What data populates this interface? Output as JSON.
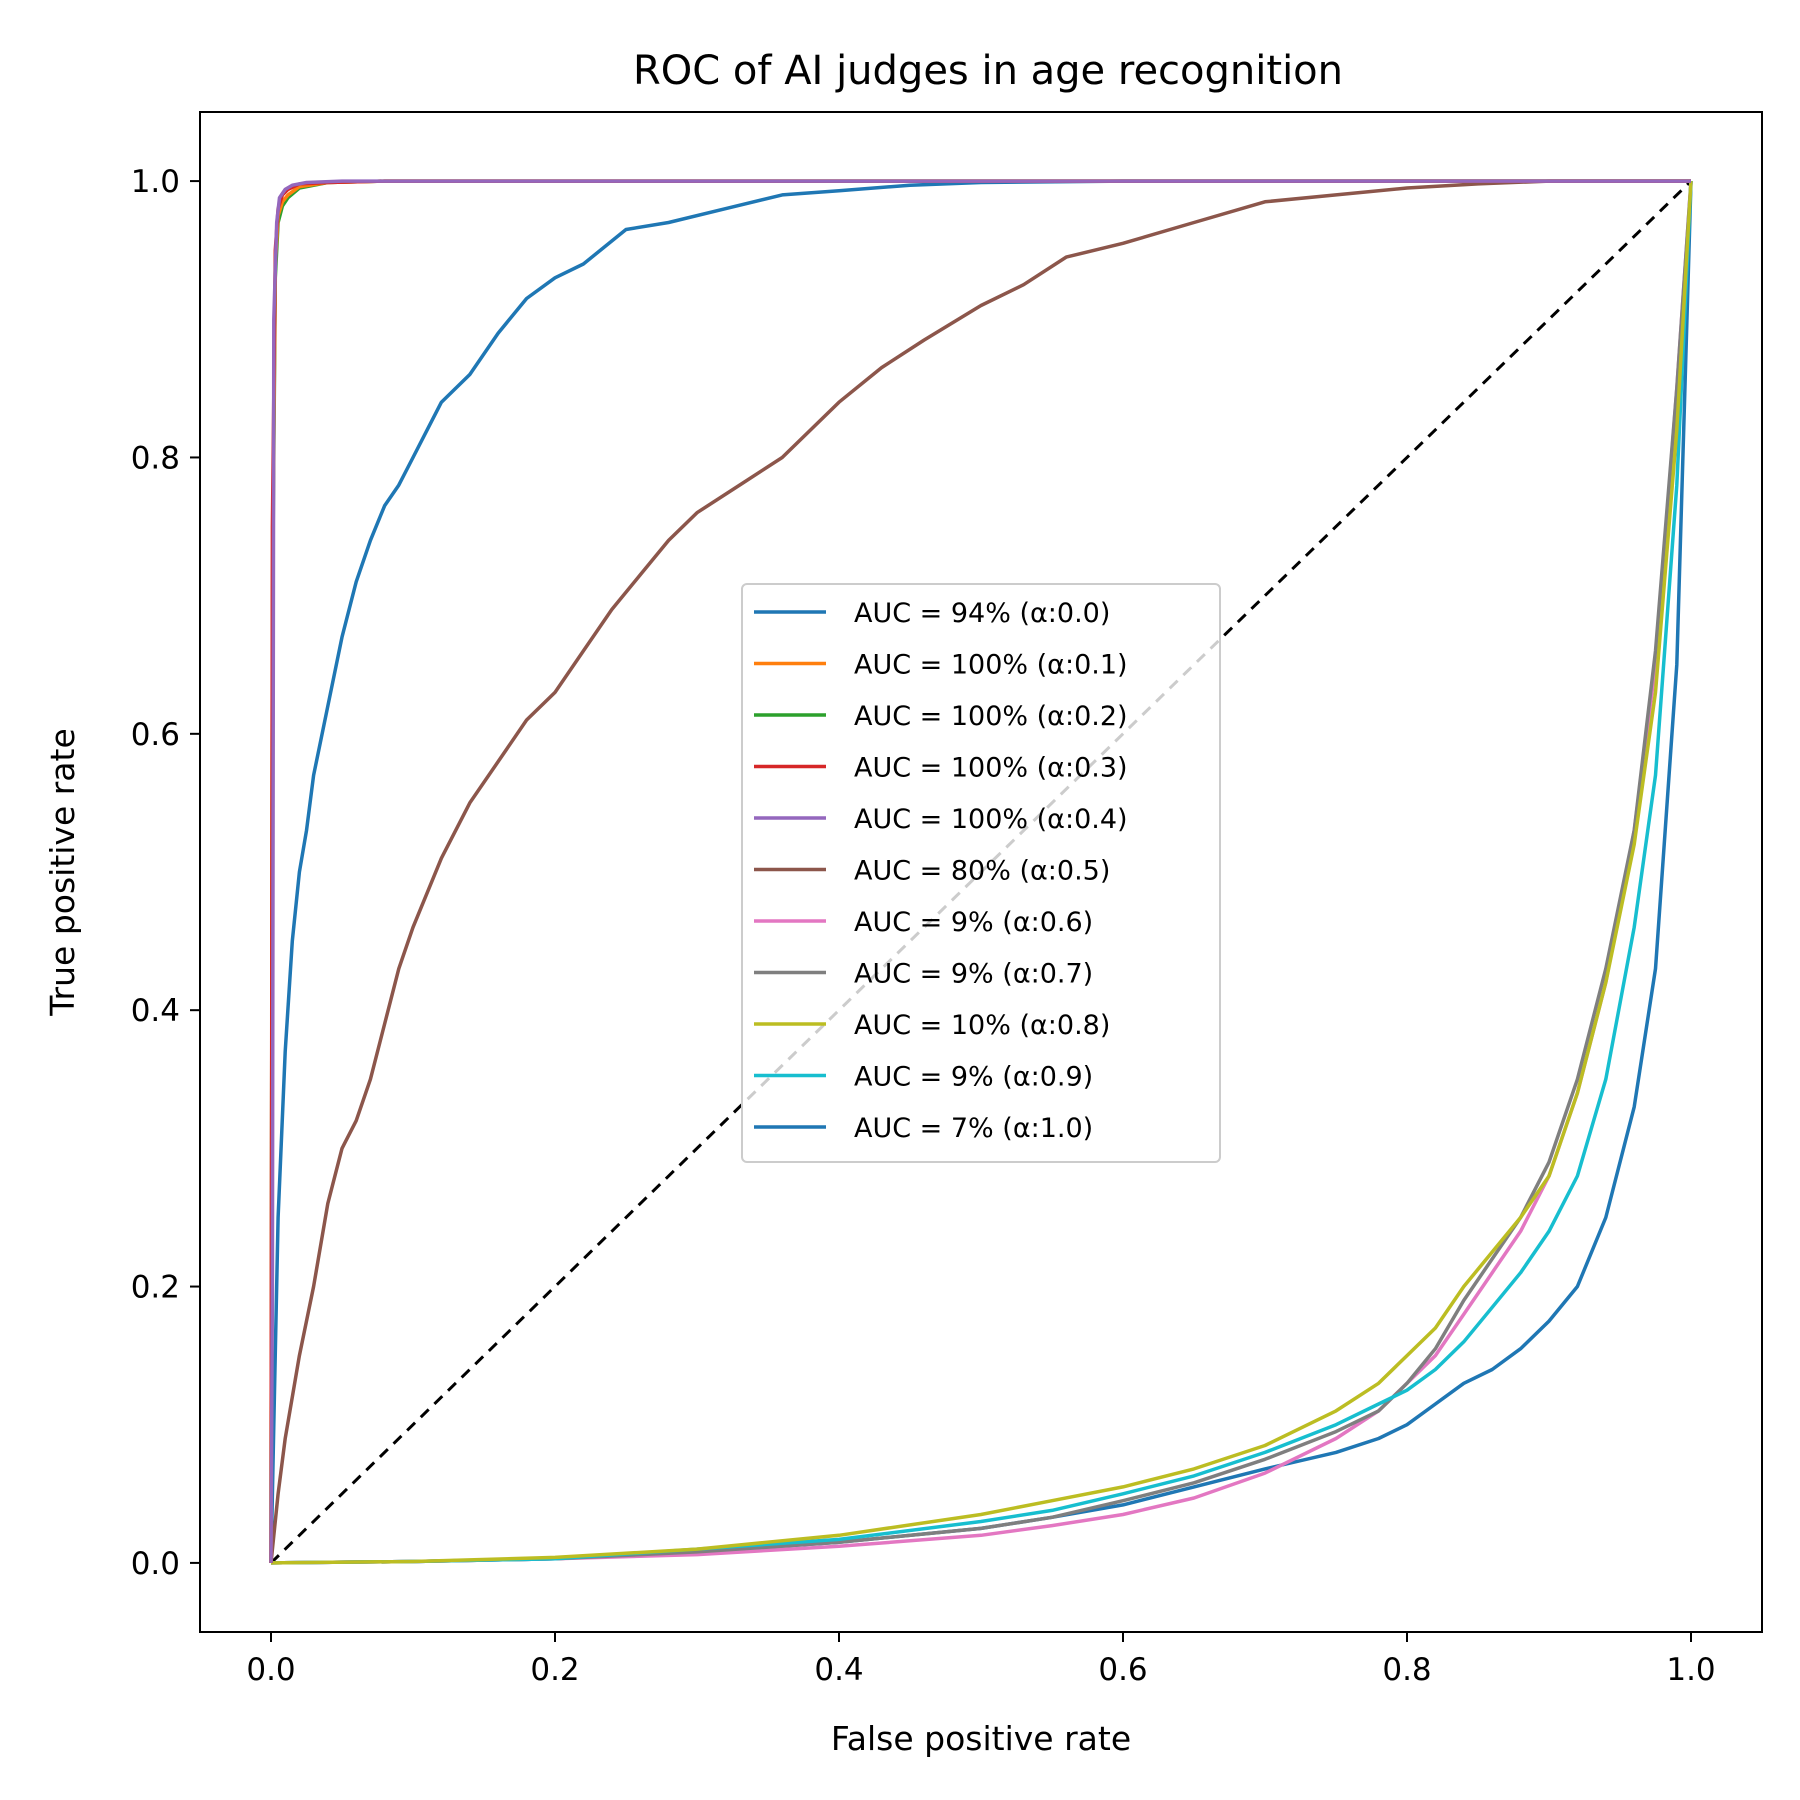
{
  "chart_data": {
    "type": "line",
    "title": "ROC of AI judges in age recognition",
    "xlabel": "False positive rate",
    "ylabel": "True positive rate",
    "xlim": [
      -0.05,
      1.05
    ],
    "ylim": [
      -0.05,
      1.05
    ],
    "xticks": [
      0.0,
      0.2,
      0.4,
      0.6,
      0.8,
      1.0
    ],
    "yticks": [
      0.0,
      0.2,
      0.4,
      0.6,
      0.8,
      1.0
    ],
    "xtick_labels": [
      "0.0",
      "0.2",
      "0.4",
      "0.6",
      "0.8",
      "1.0"
    ],
    "ytick_labels": [
      "0.0",
      "0.2",
      "0.4",
      "0.6",
      "0.8",
      "1.0"
    ],
    "legend_position": "center",
    "grid": false,
    "diagonal": {
      "x": [
        0,
        1
      ],
      "y": [
        0,
        1
      ],
      "color": "#000000",
      "style": "dashed"
    },
    "series": [
      {
        "name": "AUC = 94% (α:0.0)",
        "color": "#1f77b4",
        "x": [
          0,
          0.002,
          0.005,
          0.01,
          0.015,
          0.02,
          0.025,
          0.03,
          0.04,
          0.05,
          0.06,
          0.07,
          0.08,
          0.09,
          0.1,
          0.11,
          0.12,
          0.14,
          0.16,
          0.18,
          0.2,
          0.22,
          0.25,
          0.28,
          0.32,
          0.36,
          0.4,
          0.45,
          0.5,
          0.6,
          0.8,
          1.0
        ],
        "y": [
          0,
          0.1,
          0.25,
          0.37,
          0.45,
          0.5,
          0.53,
          0.57,
          0.62,
          0.67,
          0.71,
          0.74,
          0.765,
          0.78,
          0.8,
          0.82,
          0.84,
          0.86,
          0.89,
          0.915,
          0.93,
          0.94,
          0.965,
          0.97,
          0.98,
          0.99,
          0.993,
          0.997,
          0.999,
          1.0,
          1.0,
          1.0
        ]
      },
      {
        "name": "AUC = 100% (α:0.1)",
        "color": "#ff7f0e",
        "x": [
          0,
          0.001,
          0.003,
          0.005,
          0.008,
          0.012,
          0.02,
          0.04,
          0.08,
          0.3,
          0.6,
          1.0
        ],
        "y": [
          0,
          0.7,
          0.94,
          0.975,
          0.985,
          0.99,
          0.996,
          0.999,
          1.0,
          1.0,
          1.0,
          1.0
        ]
      },
      {
        "name": "AUC = 100% (α:0.2)",
        "color": "#2ca02c",
        "x": [
          0,
          0.001,
          0.003,
          0.005,
          0.008,
          0.012,
          0.02,
          0.04,
          0.08,
          0.3,
          0.6,
          1.0
        ],
        "y": [
          0,
          0.68,
          0.93,
          0.97,
          0.982,
          0.988,
          0.995,
          0.999,
          1.0,
          1.0,
          1.0,
          1.0
        ]
      },
      {
        "name": "AUC = 100% (α:0.3)",
        "color": "#d62728",
        "x": [
          0,
          0.001,
          0.003,
          0.005,
          0.008,
          0.012,
          0.02,
          0.04,
          0.08,
          0.3,
          0.6,
          1.0
        ],
        "y": [
          0,
          0.75,
          0.95,
          0.98,
          0.99,
          0.994,
          0.998,
          0.999,
          1.0,
          1.0,
          1.0,
          1.0
        ]
      },
      {
        "name": "AUC = 100% (α:0.4)",
        "color": "#9467bd",
        "x": [
          0,
          0.001,
          0.002,
          0.004,
          0.006,
          0.01,
          0.015,
          0.025,
          0.05,
          0.3,
          0.6,
          1.0
        ],
        "y": [
          0,
          0.2,
          0.9,
          0.97,
          0.988,
          0.994,
          0.997,
          0.999,
          1.0,
          1.0,
          1.0,
          1.0
        ]
      },
      {
        "name": "AUC = 80% (α:0.5)",
        "color": "#8c564b",
        "x": [
          0,
          0.005,
          0.01,
          0.02,
          0.03,
          0.04,
          0.05,
          0.06,
          0.07,
          0.08,
          0.09,
          0.1,
          0.12,
          0.14,
          0.16,
          0.18,
          0.2,
          0.22,
          0.24,
          0.26,
          0.28,
          0.3,
          0.33,
          0.36,
          0.4,
          0.43,
          0.46,
          0.5,
          0.53,
          0.56,
          0.6,
          0.65,
          0.7,
          0.75,
          0.8,
          0.85,
          0.9,
          1.0
        ],
        "y": [
          0,
          0.05,
          0.09,
          0.15,
          0.2,
          0.26,
          0.3,
          0.32,
          0.35,
          0.39,
          0.43,
          0.46,
          0.51,
          0.55,
          0.58,
          0.61,
          0.63,
          0.66,
          0.69,
          0.715,
          0.74,
          0.76,
          0.78,
          0.8,
          0.84,
          0.865,
          0.885,
          0.91,
          0.925,
          0.945,
          0.955,
          0.97,
          0.985,
          0.99,
          0.995,
          0.998,
          1.0,
          1.0
        ]
      },
      {
        "name": "AUC = 9% (α:0.6)",
        "color": "#e377c2",
        "x": [
          0,
          0.1,
          0.2,
          0.3,
          0.4,
          0.5,
          0.55,
          0.6,
          0.65,
          0.7,
          0.75,
          0.78,
          0.8,
          0.82,
          0.84,
          0.86,
          0.88,
          0.9,
          0.92,
          0.94,
          0.96,
          0.975,
          0.99,
          1.0
        ],
        "y": [
          0,
          0.001,
          0.003,
          0.006,
          0.012,
          0.02,
          0.027,
          0.035,
          0.047,
          0.065,
          0.09,
          0.11,
          0.13,
          0.15,
          0.18,
          0.21,
          0.24,
          0.28,
          0.34,
          0.42,
          0.53,
          0.65,
          0.85,
          1.0
        ]
      },
      {
        "name": "AUC = 9% (α:0.7)",
        "color": "#7f7f7f",
        "x": [
          0,
          0.1,
          0.2,
          0.3,
          0.4,
          0.5,
          0.55,
          0.6,
          0.65,
          0.7,
          0.75,
          0.78,
          0.8,
          0.82,
          0.84,
          0.86,
          0.88,
          0.9,
          0.92,
          0.94,
          0.96,
          0.975,
          0.99,
          1.0
        ],
        "y": [
          0,
          0.001,
          0.003,
          0.008,
          0.015,
          0.025,
          0.033,
          0.045,
          0.058,
          0.075,
          0.095,
          0.11,
          0.13,
          0.155,
          0.19,
          0.22,
          0.25,
          0.29,
          0.35,
          0.43,
          0.53,
          0.66,
          0.85,
          1.0
        ]
      },
      {
        "name": "AUC = 10% (α:0.8)",
        "color": "#bcbd22",
        "x": [
          0,
          0.1,
          0.2,
          0.3,
          0.4,
          0.5,
          0.55,
          0.6,
          0.65,
          0.7,
          0.75,
          0.78,
          0.8,
          0.82,
          0.84,
          0.86,
          0.88,
          0.9,
          0.92,
          0.94,
          0.96,
          0.975,
          0.99,
          1.0
        ],
        "y": [
          0,
          0.001,
          0.004,
          0.01,
          0.02,
          0.035,
          0.045,
          0.055,
          0.068,
          0.085,
          0.11,
          0.13,
          0.15,
          0.17,
          0.2,
          0.225,
          0.25,
          0.28,
          0.34,
          0.42,
          0.52,
          0.63,
          0.82,
          1.0
        ]
      },
      {
        "name": "AUC = 9% (α:0.9)",
        "color": "#17becf",
        "x": [
          0,
          0.1,
          0.2,
          0.3,
          0.4,
          0.5,
          0.55,
          0.6,
          0.65,
          0.7,
          0.75,
          0.78,
          0.8,
          0.82,
          0.84,
          0.86,
          0.88,
          0.9,
          0.92,
          0.94,
          0.96,
          0.975,
          0.99,
          1.0
        ],
        "y": [
          0,
          0.001,
          0.003,
          0.01,
          0.017,
          0.03,
          0.038,
          0.05,
          0.063,
          0.08,
          0.1,
          0.115,
          0.125,
          0.14,
          0.16,
          0.185,
          0.21,
          0.24,
          0.28,
          0.35,
          0.46,
          0.57,
          0.78,
          1.0
        ]
      },
      {
        "name": "AUC = 7% (α:1.0)",
        "color": "#1f77b4",
        "x": [
          0,
          0.1,
          0.2,
          0.3,
          0.4,
          0.5,
          0.55,
          0.6,
          0.65,
          0.7,
          0.75,
          0.78,
          0.8,
          0.82,
          0.84,
          0.86,
          0.88,
          0.9,
          0.92,
          0.94,
          0.96,
          0.975,
          0.99,
          1.0
        ],
        "y": [
          0,
          0.001,
          0.003,
          0.008,
          0.015,
          0.025,
          0.033,
          0.042,
          0.055,
          0.068,
          0.08,
          0.09,
          0.1,
          0.115,
          0.13,
          0.14,
          0.155,
          0.175,
          0.2,
          0.25,
          0.33,
          0.43,
          0.65,
          1.0
        ]
      }
    ]
  }
}
